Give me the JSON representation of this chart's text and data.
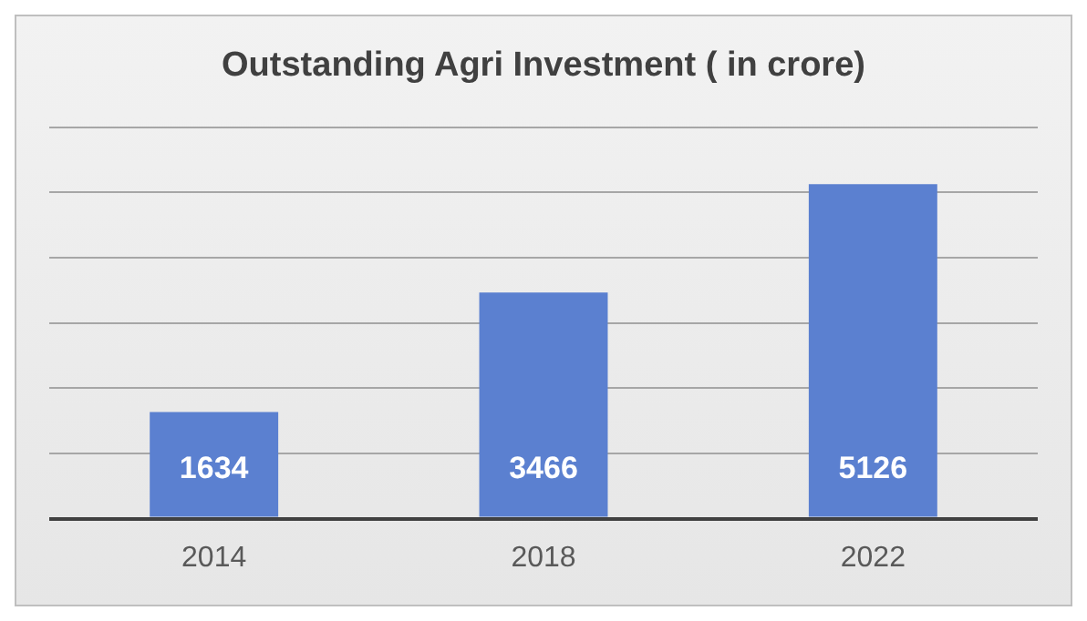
{
  "chart_data": {
    "type": "bar",
    "title": "Outstanding Agri Investment ( in crore)",
    "categories": [
      "2014",
      "2018",
      "2022"
    ],
    "values": [
      1634,
      3466,
      5126
    ],
    "color": "#5b80d0",
    "ylim": [
      0,
      6000
    ],
    "yticks": [
      {
        "value": 0,
        "label": null
      },
      {
        "value": 1000,
        "label": null
      },
      {
        "value": 2000,
        "label": null
      },
      {
        "value": 3000,
        "label": null
      },
      {
        "value": 4000,
        "label": null
      },
      {
        "value": 5000,
        "label": null
      },
      {
        "value": 6000,
        "label": null
      }
    ],
    "grid": "y",
    "tick_labels": "x",
    "data_labels": true,
    "legend": false
  }
}
